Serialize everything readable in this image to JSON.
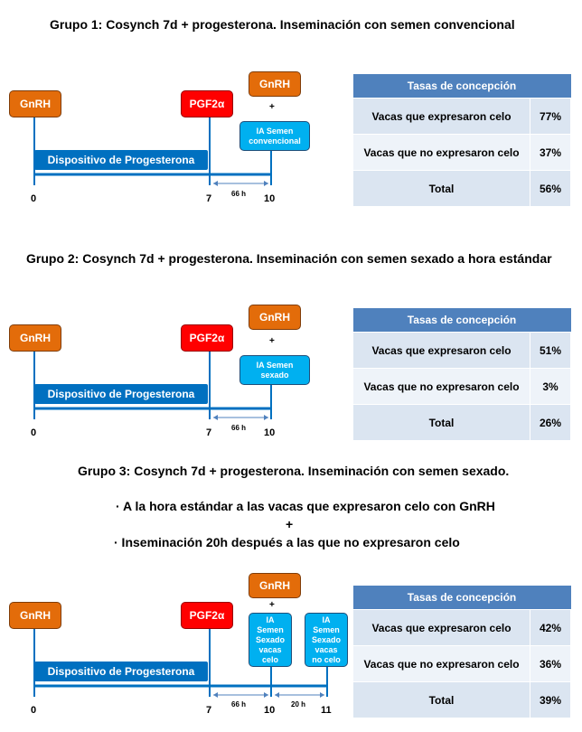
{
  "groups": [
    {
      "title": "Grupo 1: Cosynch 7d + progesterona. Inseminación con semen convencional",
      "gnrh_start": "GnRH",
      "pgf": "PGF2α",
      "gnrh_end": "GnRH",
      "plus": "+",
      "ia_lines": [
        "IA Semen",
        "convencional"
      ],
      "device": "Dispositivo de Progesterona",
      "ticks": [
        "0",
        "7",
        "10"
      ],
      "interval": "66 h",
      "table": {
        "header": "Tasas de concepción",
        "rows": [
          {
            "label": "Vacas que expresaron celo",
            "value": "77%"
          },
          {
            "label": "Vacas que no expresaron celo",
            "value": "37%"
          },
          {
            "label": "Total",
            "value": "56%"
          }
        ]
      }
    },
    {
      "title": "Grupo 2: Cosynch 7d + progesterona. Inseminación con semen sexado a hora estándar",
      "gnrh_start": "GnRH",
      "pgf": "PGF2α",
      "gnrh_end": "GnRH",
      "plus": "+",
      "ia_lines": [
        "IA Semen",
        "sexado"
      ],
      "device": "Dispositivo de Progesterona",
      "ticks": [
        "0",
        "7",
        "10"
      ],
      "interval": "66 h",
      "table": {
        "header": "Tasas de concepción",
        "rows": [
          {
            "label": "Vacas que expresaron celo",
            "value": "51%"
          },
          {
            "label": "Vacas que no expresaron celo",
            "value": "3%"
          },
          {
            "label": "Total",
            "value": "26%"
          }
        ]
      }
    },
    {
      "title": "Grupo 3: Cosynch 7d + progesterona. Inseminación con semen sexado.",
      "line1": "· A la hora estándar a las vacas que expresaron celo con GnRH",
      "line_plus": "+",
      "line2": "· Inseminación 20h después a las que no expresaron celo",
      "gnrh_start": "GnRH",
      "pgf": "PGF2α",
      "gnrh_end": "GnRH",
      "plus": "+",
      "ia1_lines": [
        "IA",
        "Semen",
        "Sexado",
        "vacas",
        "celo"
      ],
      "ia2_lines": [
        "IA",
        "Semen",
        "Sexado",
        "vacas",
        "no celo"
      ],
      "device": "Dispositivo de Progesterona",
      "ticks": [
        "0",
        "7",
        "10",
        "11"
      ],
      "interval": "66 h",
      "interval2": "20 h",
      "table": {
        "header": "Tasas de concepción",
        "rows": [
          {
            "label": "Vacas que expresaron celo",
            "value": "42%"
          },
          {
            "label": "Vacas que no expresaron celo",
            "value": "36%"
          },
          {
            "label": "Total",
            "value": "39%"
          }
        ]
      }
    }
  ],
  "colors": {
    "gnrh": "#e36c0a",
    "pgf": "#ff0000",
    "ia": "#00b0f0",
    "device": "#0070c0",
    "table_header": "#4f81bd",
    "table_cell": "#dbe5f1"
  }
}
